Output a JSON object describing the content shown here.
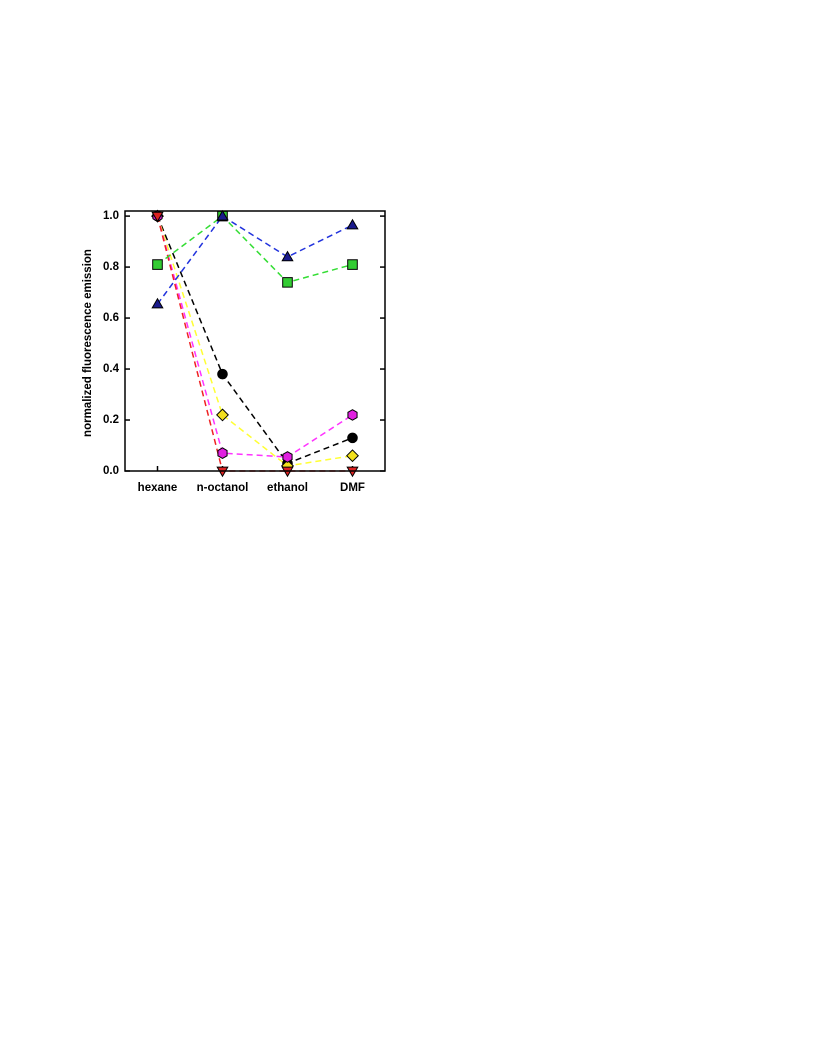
{
  "chart_data": {
    "type": "line",
    "y_label": "normalized fluorescence emission",
    "categories": [
      "hexane",
      "n-octanol",
      "ethanol",
      "DMF"
    ],
    "ylim": [
      0,
      1.02
    ],
    "yticks": [
      {
        "value": 0,
        "label": "0.0"
      },
      {
        "value": 0.2,
        "label": "0.2"
      },
      {
        "value": 0.4,
        "label": "0.4"
      },
      {
        "value": 0.6,
        "label": "0.6"
      },
      {
        "value": 0.8,
        "label": "0.8"
      },
      {
        "value": 1,
        "label": "1.0"
      }
    ],
    "series": [
      {
        "color": "#000000",
        "marker": "circle",
        "marker_color": "#000000",
        "values": [
          1.0,
          0.38,
          0.03,
          0.13
        ]
      },
      {
        "color": "#ffff33",
        "marker": "diamond",
        "marker_color": "#f2e01c",
        "values": [
          1.0,
          0.22,
          0.02,
          0.06
        ]
      },
      {
        "color": "#ff33ff",
        "marker": "hexagon",
        "marker_color": "#e020e0",
        "values": [
          1.0,
          0.07,
          0.055,
          0.22
        ]
      },
      {
        "color": "#ee2222",
        "marker": "triangle-down",
        "marker_color": "#dd2222",
        "values": [
          1.0,
          0.0,
          0.0,
          0.0
        ]
      },
      {
        "color": "#33dd33",
        "marker": "square",
        "marker_color": "#33cc33",
        "values": [
          0.81,
          1.0,
          0.74,
          0.81
        ]
      },
      {
        "color": "#2233dd",
        "marker": "triangle-up",
        "marker_color": "#1a1a8c",
        "values": [
          0.655,
          1.0,
          0.84,
          0.965
        ]
      }
    ]
  }
}
